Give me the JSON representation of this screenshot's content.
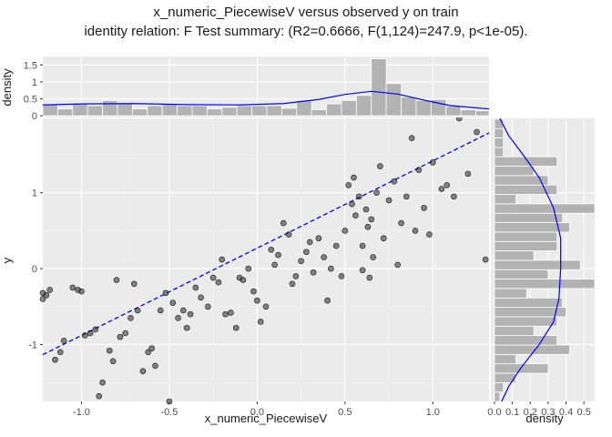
{
  "title": "x_numeric_PiecewiseV versus observed y on train",
  "subtitle": "identity relation: F Test summary: (R2=0.6666, F(1,124)=247.9, p<1e-05).",
  "chart_data": {
    "type": "scatter",
    "xlabel": "x_numeric_PiecewiseV",
    "ylabel": "y",
    "xlim": [
      -1.22,
      1.32
    ],
    "ylim": [
      -1.75,
      1.98
    ],
    "x_ticks": [
      "-1.0",
      "-0.5",
      "0.0",
      "0.5",
      "1.0"
    ],
    "x_tick_values": [
      -1.0,
      -0.5,
      0.0,
      0.5,
      1.0
    ],
    "y_ticks": [
      "-1",
      "0",
      "1"
    ],
    "y_tick_values": [
      -1,
      0,
      1
    ],
    "fit_line": {
      "style": "dashed",
      "color": "#0000ff",
      "intercept": 0.27,
      "slope": 1.15
    },
    "points": [
      [
        -1.22,
        -0.32
      ],
      [
        -1.22,
        -0.4
      ],
      [
        -1.2,
        -0.35
      ],
      [
        -1.18,
        -0.28
      ],
      [
        -1.15,
        -1.2
      ],
      [
        -1.12,
        -1.1
      ],
      [
        -1.1,
        -0.95
      ],
      [
        -1.05,
        -0.25
      ],
      [
        -1.02,
        -0.28
      ],
      [
        -1.0,
        -0.3
      ],
      [
        -0.98,
        -0.88
      ],
      [
        -0.95,
        -0.85
      ],
      [
        -0.92,
        -0.8
      ],
      [
        -0.9,
        -1.68
      ],
      [
        -0.88,
        -1.5
      ],
      [
        -0.84,
        -1.08
      ],
      [
        -0.82,
        -1.22
      ],
      [
        -0.8,
        -0.15
      ],
      [
        -0.78,
        -0.9
      ],
      [
        -0.75,
        -0.85
      ],
      [
        -0.72,
        -0.65
      ],
      [
        -0.7,
        -0.2
      ],
      [
        -0.68,
        -0.55
      ],
      [
        -0.65,
        -1.35
      ],
      [
        -0.62,
        -1.1
      ],
      [
        -0.6,
        -1.05
      ],
      [
        -0.58,
        -1.28
      ],
      [
        -0.55,
        -0.55
      ],
      [
        -0.52,
        -0.32
      ],
      [
        -0.5,
        -1.75
      ],
      [
        -0.48,
        -0.45
      ],
      [
        -0.45,
        -0.65
      ],
      [
        -0.42,
        -0.55
      ],
      [
        -0.4,
        -0.78
      ],
      [
        -0.38,
        -0.6
      ],
      [
        -0.35,
        -0.25
      ],
      [
        -0.32,
        -0.38
      ],
      [
        -0.28,
        -0.5
      ],
      [
        -0.25,
        -0.12
      ],
      [
        -0.22,
        -0.18
      ],
      [
        -0.2,
        0.12
      ],
      [
        -0.18,
        -0.6
      ],
      [
        -0.15,
        -0.58
      ],
      [
        -0.12,
        -0.78
      ],
      [
        -0.1,
        -0.12
      ],
      [
        -0.08,
        -0.15
      ],
      [
        -0.05,
        0.0
      ],
      [
        -0.02,
        -0.3
      ],
      [
        0.0,
        -0.42
      ],
      [
        0.02,
        -0.7
      ],
      [
        0.05,
        -0.5
      ],
      [
        0.08,
        0.25
      ],
      [
        0.1,
        0.05
      ],
      [
        0.12,
        0.18
      ],
      [
        0.15,
        0.6
      ],
      [
        0.18,
        0.45
      ],
      [
        0.2,
        -0.2
      ],
      [
        0.22,
        -0.1
      ],
      [
        0.25,
        0.1
      ],
      [
        0.28,
        0.22
      ],
      [
        0.3,
        0.35
      ],
      [
        0.32,
        -0.05
      ],
      [
        0.35,
        0.4
      ],
      [
        0.38,
        0.15
      ],
      [
        0.4,
        -0.42
      ],
      [
        0.42,
        0.0
      ],
      [
        0.45,
        0.3
      ],
      [
        0.48,
        -0.1
      ],
      [
        0.5,
        0.5
      ],
      [
        0.52,
        1.1
      ],
      [
        0.54,
        0.85
      ],
      [
        0.55,
        1.2
      ],
      [
        0.56,
        0.7
      ],
      [
        0.58,
        0.95
      ],
      [
        0.6,
        0.3
      ],
      [
        0.6,
        -0.02
      ],
      [
        0.62,
        0.78
      ],
      [
        0.63,
        0.55
      ],
      [
        0.64,
        -0.12
      ],
      [
        0.65,
        0.65
      ],
      [
        0.66,
        0.15
      ],
      [
        0.68,
        1.0
      ],
      [
        0.7,
        1.35
      ],
      [
        0.72,
        0.4
      ],
      [
        0.75,
        0.9
      ],
      [
        0.78,
        1.15
      ],
      [
        0.8,
        0.05
      ],
      [
        0.82,
        0.6
      ],
      [
        0.85,
        0.95
      ],
      [
        0.88,
        1.72
      ],
      [
        0.9,
        0.5
      ],
      [
        0.92,
        1.3
      ],
      [
        0.95,
        0.8
      ],
      [
        0.98,
        0.45
      ],
      [
        1.0,
        1.4
      ],
      [
        1.05,
        1.05
      ],
      [
        1.08,
        1.1
      ],
      [
        1.12,
        0.95
      ],
      [
        1.15,
        1.98
      ],
      [
        1.2,
        1.25
      ],
      [
        1.25,
        1.8
      ],
      [
        1.3,
        0.12
      ]
    ],
    "top_marginal": {
      "ylabel": "density",
      "y_ticks": [
        "0",
        "0.5",
        "1",
        "1.5"
      ],
      "y_tick_values": [
        0,
        0.5,
        1.0,
        1.5
      ],
      "ylim": [
        -0.05,
        1.75
      ],
      "bin_start": -1.22,
      "bin_width": 0.085,
      "hist": [
        0.35,
        0.2,
        0.35,
        0.3,
        0.45,
        0.35,
        0.2,
        0.3,
        0.35,
        0.3,
        0.3,
        0.2,
        0.25,
        0.3,
        0.3,
        0.3,
        0.22,
        0.45,
        0.18,
        0.35,
        0.45,
        0.6,
        1.68,
        0.95,
        0.55,
        0.45,
        0.48,
        0.28,
        0.18,
        0.15
      ],
      "density_curve": [
        [
          -1.22,
          0.32
        ],
        [
          -1.0,
          0.35
        ],
        [
          -0.7,
          0.36
        ],
        [
          -0.4,
          0.33
        ],
        [
          -0.1,
          0.32
        ],
        [
          0.15,
          0.36
        ],
        [
          0.35,
          0.48
        ],
        [
          0.5,
          0.63
        ],
        [
          0.65,
          0.72
        ],
        [
          0.8,
          0.64
        ],
        [
          0.95,
          0.46
        ],
        [
          1.1,
          0.3
        ],
        [
          1.32,
          0.2
        ]
      ]
    },
    "right_marginal": {
      "xlabel": "density",
      "x_ticks": [
        "0.0",
        "0.1",
        "0.2",
        "0.3",
        "0.4",
        "0.5"
      ],
      "x_tick_values": [
        0.0,
        0.1,
        0.2,
        0.3,
        0.4,
        0.5
      ],
      "xlim": [
        -0.02,
        0.56
      ],
      "bin_start": -1.75,
      "bin_width": 0.124,
      "hist": [
        0.03,
        0.05,
        0.12,
        0.3,
        0.12,
        0.42,
        0.35,
        0.22,
        0.35,
        0.4,
        0.38,
        0.18,
        0.58,
        0.3,
        0.48,
        0.22,
        0.35,
        0.35,
        0.42,
        0.38,
        0.58,
        0.12,
        0.35,
        0.3,
        0.22,
        0.35,
        0.05,
        0.05,
        0.05,
        0.05
      ],
      "density_curve": [
        [
          -1.75,
          0.04
        ],
        [
          -1.55,
          0.08
        ],
        [
          -1.3,
          0.15
        ],
        [
          -1.0,
          0.25
        ],
        [
          -0.7,
          0.33
        ],
        [
          -0.4,
          0.36
        ],
        [
          0.0,
          0.37
        ],
        [
          0.4,
          0.37
        ],
        [
          0.8,
          0.33
        ],
        [
          1.2,
          0.25
        ],
        [
          1.5,
          0.16
        ],
        [
          1.75,
          0.08
        ],
        [
          1.98,
          0.03
        ]
      ]
    }
  }
}
